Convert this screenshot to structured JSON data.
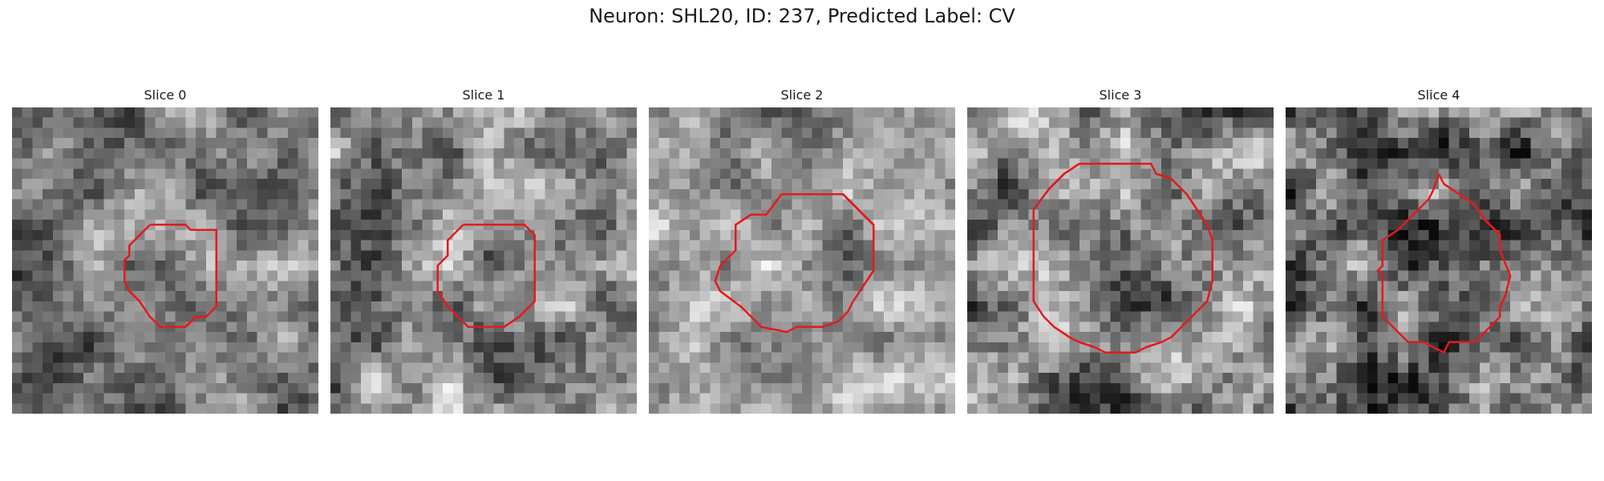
{
  "figure": {
    "title": "Neuron: SHL20, ID: 237, Predicted Label: CV",
    "contour_color": "#e41a1c",
    "colormap": "grayscale"
  },
  "slices": [
    {
      "title": "Slice 0",
      "seed": 11,
      "bright": 0.5,
      "contrast": 0.8
    },
    {
      "title": "Slice 1",
      "seed": 23,
      "bright": 0.55,
      "contrast": 0.9
    },
    {
      "title": "Slice 2",
      "seed": 37,
      "bright": 0.62,
      "contrast": 0.75
    },
    {
      "title": "Slice 3",
      "seed": 41,
      "bright": 0.5,
      "contrast": 1.0
    },
    {
      "title": "Slice 4",
      "seed": 59,
      "bright": 0.42,
      "contrast": 1.05
    }
  ]
}
